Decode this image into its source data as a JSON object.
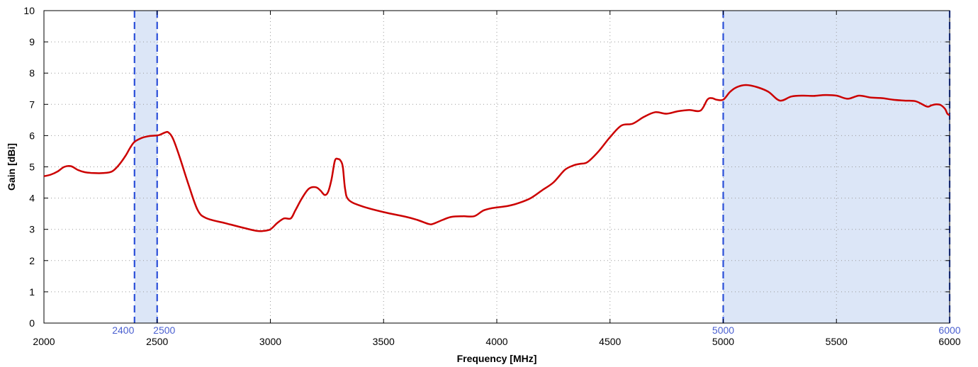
{
  "chart_data": {
    "type": "line",
    "xlabel": "Frequency [MHz]",
    "ylabel": "Gain [dBi]",
    "xlim": [
      2000,
      6000
    ],
    "ylim": [
      0,
      10
    ],
    "xticks": [
      2000,
      2500,
      3000,
      3500,
      4000,
      4500,
      5000,
      5500,
      6000
    ],
    "yticks": [
      0,
      1,
      2,
      3,
      4,
      5,
      6,
      7,
      8,
      9,
      10
    ],
    "grid": true,
    "colors": {
      "line": "#cc0000",
      "band_fill": "#dce6f7",
      "band_edge": "#2b4fd8",
      "band_label": "#4a5fd0",
      "grid": "#999999"
    },
    "bands": [
      {
        "start": 2400,
        "end": 2500,
        "start_label": "2400",
        "end_label": "2500"
      },
      {
        "start": 5000,
        "end": 6000,
        "start_label": "5000",
        "end_label": "6000"
      }
    ],
    "series": [
      {
        "x": [
          2000,
          2030,
          2060,
          2090,
          2120,
          2150,
          2180,
          2220,
          2260,
          2300,
          2330,
          2360,
          2380,
          2400,
          2430,
          2460,
          2490,
          2510,
          2535,
          2550,
          2570,
          2600,
          2640,
          2680,
          2720,
          2800,
          2880,
          2940,
          2970,
          3000,
          3030,
          3060,
          3090,
          3110,
          3140,
          3170,
          3200,
          3220,
          3240,
          3255,
          3270,
          3285,
          3300,
          3310,
          3320,
          3330,
          3345,
          3400,
          3500,
          3600,
          3650,
          3700,
          3720,
          3760,
          3800,
          3850,
          3900,
          3940,
          3980,
          4050,
          4100,
          4150,
          4200,
          4250,
          4300,
          4340,
          4370,
          4400,
          4450,
          4500,
          4550,
          4600,
          4650,
          4700,
          4750,
          4800,
          4850,
          4900,
          4930,
          4950,
          4970,
          5000,
          5030,
          5060,
          5100,
          5150,
          5200,
          5250,
          5300,
          5350,
          5400,
          5450,
          5500,
          5550,
          5600,
          5650,
          5700,
          5750,
          5800,
          5850,
          5900,
          5920,
          5940,
          5960,
          5980,
          5990,
          6000
        ],
        "y": [
          4.7,
          4.75,
          4.85,
          5.0,
          5.02,
          4.9,
          4.83,
          4.8,
          4.8,
          4.85,
          5.05,
          5.35,
          5.6,
          5.8,
          5.92,
          5.98,
          6.0,
          6.02,
          6.1,
          6.1,
          5.9,
          5.3,
          4.4,
          3.6,
          3.35,
          3.2,
          3.05,
          2.95,
          2.95,
          3.0,
          3.2,
          3.35,
          3.35,
          3.6,
          4.0,
          4.3,
          4.35,
          4.25,
          4.1,
          4.2,
          4.6,
          5.2,
          5.25,
          5.2,
          5.0,
          4.3,
          3.95,
          3.75,
          3.55,
          3.4,
          3.3,
          3.17,
          3.18,
          3.3,
          3.4,
          3.42,
          3.42,
          3.6,
          3.68,
          3.75,
          3.85,
          4.0,
          4.25,
          4.5,
          4.9,
          5.05,
          5.1,
          5.15,
          5.5,
          5.95,
          6.32,
          6.38,
          6.6,
          6.75,
          6.7,
          6.78,
          6.82,
          6.8,
          7.15,
          7.2,
          7.15,
          7.15,
          7.4,
          7.55,
          7.62,
          7.55,
          7.4,
          7.12,
          7.25,
          7.28,
          7.27,
          7.3,
          7.28,
          7.18,
          7.28,
          7.22,
          7.2,
          7.15,
          7.12,
          7.1,
          6.93,
          6.97,
          7.0,
          6.98,
          6.85,
          6.7,
          6.65
        ]
      }
    ]
  }
}
